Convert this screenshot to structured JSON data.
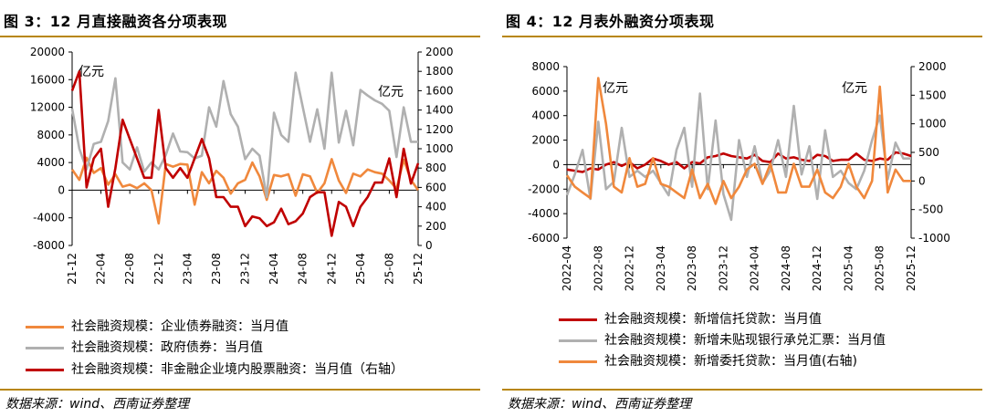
{
  "panels": {
    "left": {
      "title": "图 3：12 月直接融资各分项表现",
      "unit_label": "亿元",
      "source": "数据来源：wind、西南证券整理"
    },
    "right": {
      "title": "图 4：12 月表外融资分项表现",
      "unit_label": "亿元",
      "source": "数据来源：wind、西南证券整理"
    }
  },
  "colors": {
    "orange": "#f0883c",
    "gray": "#b0b0b0",
    "red": "#c00000",
    "rule": "#b8860b"
  },
  "chart_data": [
    {
      "type": "line",
      "title": "图 3：12 月直接融资各分项表现",
      "x": [
        "2021-12",
        "2022-01",
        "2022-02",
        "2022-03",
        "2022-04",
        "2022-05",
        "2022-06",
        "2022-07",
        "2022-08",
        "2022-09",
        "2022-10",
        "2022-11",
        "2022-12",
        "2023-01",
        "2023-02",
        "2023-03",
        "2023-04",
        "2023-05",
        "2023-06",
        "2023-07",
        "2023-08",
        "2023-09",
        "2023-10",
        "2023-11",
        "2023-12",
        "2024-01",
        "2024-02",
        "2024-03",
        "2024-04",
        "2024-05",
        "2024-06",
        "2024-07",
        "2024-08",
        "2024-09",
        "2024-10",
        "2024-11",
        "2024-12",
        "2025-01",
        "2025-02",
        "2025-03",
        "2025-04",
        "2025-05",
        "2025-06",
        "2025-07",
        "2025-08",
        "2025-09",
        "2025-10",
        "2025-11",
        "2025-12"
      ],
      "x_ticks": [
        "2021-12",
        "2022-04",
        "2022-08",
        "2022-12",
        "2023-04",
        "2023-08",
        "2023-12",
        "2024-04",
        "2024-08",
        "2024-12",
        "2025-04",
        "2025-08",
        "2025-12"
      ],
      "y_left": {
        "lim": [
          -8000,
          20000
        ],
        "ticks": [
          "-8000",
          "-4000",
          "0",
          "4000",
          "8000",
          "12000",
          "16000",
          "20000"
        ]
      },
      "y_right": {
        "lim": [
          0,
          2000
        ],
        "ticks": [
          "0",
          "200",
          "400",
          "600",
          "800",
          "1000",
          "1200",
          "1400",
          "1600",
          "1800",
          "2000"
        ]
      },
      "unit": "亿元",
      "series": [
        {
          "name": "社会融资规模：企业债券融资：当月值",
          "axis": "left",
          "color": "#f0883c",
          "values": [
            3000,
            1500,
            4700,
            2500,
            3200,
            800,
            2300,
            500,
            800,
            300,
            1000,
            0,
            -4800,
            3800,
            3400,
            3800,
            3700,
            -2100,
            2600,
            1000,
            2800,
            1800,
            -500,
            1000,
            1500,
            4000,
            2000,
            -1400,
            2200,
            2000,
            2300,
            -800,
            2300,
            2000,
            -400,
            1000,
            4500,
            1400,
            -400,
            2400,
            2000,
            3000,
            2600,
            2400,
            1400,
            200,
            4400,
            1500,
            0
          ]
        },
        {
          "name": "社会融资规模：政府债券：当月值",
          "axis": "left",
          "color": "#b0b0b0",
          "values": [
            11800,
            6000,
            3000,
            6700,
            7000,
            10000,
            16200,
            4000,
            3000,
            6200,
            2700,
            4000,
            3000,
            5100,
            8200,
            5600,
            5500,
            4600,
            5000,
            12000,
            9200,
            15800,
            11000,
            9200,
            4500,
            6000,
            5000,
            -1000,
            11200,
            8000,
            7000,
            17000,
            12000,
            7000,
            11700,
            6000,
            17000,
            6900,
            11500,
            6500,
            14500,
            13700,
            13000,
            12500,
            11500,
            4800,
            12000,
            7000,
            7000
          ]
        },
        {
          "name": "社会融资规模：非金融企业境内股票融资：当月值（右轴）",
          "axis": "right",
          "color": "#c00000",
          "values": [
            1600,
            1800,
            600,
            900,
            1000,
            400,
            800,
            1300,
            1100,
            900,
            700,
            700,
            1400,
            800,
            700,
            800,
            700,
            900,
            1100,
            900,
            500,
            500,
            400,
            400,
            200,
            300,
            280,
            200,
            240,
            380,
            220,
            250,
            330,
            500,
            550,
            550,
            100,
            450,
            400,
            200,
            400,
            500,
            650,
            650,
            900,
            500,
            1000,
            640,
            850
          ]
        }
      ],
      "legend": [
        "社会融资规模：企业债券融资：当月值",
        "社会融资规模：政府债券：当月值",
        "社会融资规模：非金融企业境内股票融资：当月值（右轴）"
      ]
    },
    {
      "type": "line",
      "title": "图 4：12 月表外融资分项表现",
      "x": [
        "2022-04",
        "2022-05",
        "2022-06",
        "2022-07",
        "2022-08",
        "2022-09",
        "2022-10",
        "2022-11",
        "2022-12",
        "2023-01",
        "2023-02",
        "2023-03",
        "2023-04",
        "2023-05",
        "2023-06",
        "2023-07",
        "2023-08",
        "2023-09",
        "2023-10",
        "2023-11",
        "2023-12",
        "2024-01",
        "2024-02",
        "2024-03",
        "2024-04",
        "2024-05",
        "2024-06",
        "2024-07",
        "2024-08",
        "2024-09",
        "2024-10",
        "2024-11",
        "2024-12",
        "2025-01",
        "2025-02",
        "2025-03",
        "2025-04",
        "2025-05",
        "2025-06",
        "2025-07",
        "2025-08",
        "2025-09",
        "2025-10",
        "2025-11",
        "2025-12"
      ],
      "x_ticks": [
        "2022-04",
        "2022-08",
        "2022-12",
        "2023-04",
        "2023-08",
        "2023-12",
        "2024-04",
        "2024-08",
        "2024-12",
        "2025-04",
        "2025-08",
        "2025-12"
      ],
      "y_left": {
        "lim": [
          -6000,
          8000
        ],
        "ticks": [
          "-6000",
          "-4000",
          "-2000",
          "0",
          "2000",
          "4000",
          "6000",
          "8000"
        ]
      },
      "y_right": {
        "lim": [
          -1000,
          2000
        ],
        "ticks": [
          "-1000",
          "-500",
          "0",
          "500",
          "1000",
          "1500",
          "2000"
        ]
      },
      "unit": "亿元",
      "series": [
        {
          "name": "社会融资规模：新增信托贷款：当月值",
          "axis": "left",
          "color": "#c00000",
          "values": [
            -400,
            -500,
            -600,
            -300,
            -400,
            0,
            200,
            -100,
            200,
            -300,
            0,
            500,
            300,
            0,
            200,
            -300,
            200,
            100,
            600,
            700,
            900,
            700,
            600,
            500,
            800,
            300,
            200,
            900,
            500,
            600,
            400,
            300,
            800,
            700,
            300,
            400,
            400,
            900,
            400,
            300,
            500,
            400,
            1000,
            900,
            700
          ]
        },
        {
          "name": "社会融资规模：新增未贴现银行承兑汇票：当月值",
          "axis": "left",
          "color": "#b0b0b0",
          "values": [
            -2500,
            -800,
            1200,
            -2800,
            3500,
            -2000,
            -1400,
            3000,
            -1000,
            -500,
            -1000,
            -500,
            -1500,
            -2500,
            1200,
            3000,
            -1800,
            5800,
            -2000,
            3600,
            -2400,
            -4500,
            2000,
            -1000,
            1500,
            -1500,
            -500,
            2000,
            -1000,
            4800,
            -800,
            1500,
            -2800,
            2800,
            -1000,
            -500,
            -1500,
            -2000,
            -500,
            2000,
            4000,
            -1200,
            1800,
            500,
            500
          ]
        },
        {
          "name": "社会融资规模：新增委托贷款：当月值（右轴）",
          "axis": "right",
          "color": "#f0883c",
          "values": [
            100,
            -100,
            -200,
            -300,
            1800,
            1000,
            -100,
            -200,
            400,
            -100,
            -50,
            400,
            -50,
            -100,
            -200,
            -300,
            200,
            -300,
            -50,
            -400,
            0,
            -300,
            -100,
            200,
            300,
            -50,
            300,
            -200,
            -200,
            300,
            -100,
            -100,
            200,
            -200,
            -300,
            -100,
            300,
            -100,
            -300,
            0,
            1650,
            -200,
            200,
            0,
            0
          ]
        }
      ],
      "legend": [
        "社会融资规模：新增信托贷款：当月值",
        "社会融资规模：新增未贴现银行承兑汇票：当月值",
        "社会融资规模：新增委托贷款：当月值(右轴)"
      ]
    }
  ]
}
